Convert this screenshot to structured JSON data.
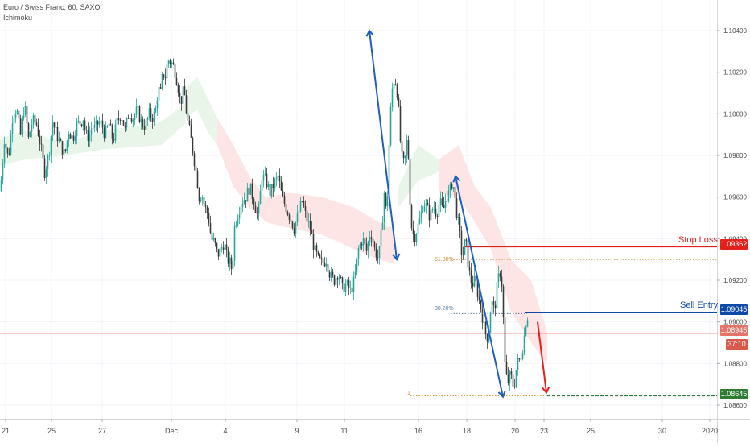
{
  "header": {
    "title": "Euro / Swiss Franc, 60, SAXO",
    "indicator": "Ichimoku"
  },
  "colors": {
    "up": "#26a69a",
    "down": "#3a3a3a",
    "stop": "#e2211c",
    "entry": "#0c4aa6",
    "target": "#2e7d32",
    "current": "#e57368",
    "timer": "#d9594c",
    "fib": "#d4892a",
    "grid": "#f0f3fa",
    "axis_text": "#4a4a4a",
    "cloud_bull": "#e6f3e6",
    "cloud_bear": "#fde1e1",
    "arrow_blue": "#1f5fbf",
    "arrow_red": "#e2211c"
  },
  "trade": {
    "stop_loss_label": "Stop Loss",
    "stop_loss_price": "1.09362",
    "sell_entry_label": "Sell Entry",
    "sell_entry_price": "1.09045",
    "target_price": "1.08645",
    "current_price": "1.08945",
    "countdown": "37:10"
  },
  "fib_labels": [
    "61.80%",
    "38.20%",
    "1"
  ],
  "chart_data": {
    "type": "candlestick",
    "symbol": "Euro / Swiss Franc, 60, SAXO",
    "indicator": "Ichimoku",
    "ylim": [
      1.0855,
      1.1055
    ],
    "y_ticks": [
      "1.10400",
      "1.10200",
      "1.10000",
      "1.09800",
      "1.09600",
      "1.09400",
      "1.09200",
      "1.09000",
      "1.08800",
      "1.08600"
    ],
    "x_ticks": [
      "21",
      "25",
      "27",
      "Dec",
      "4",
      "9",
      "11",
      "16",
      "18",
      "20",
      "23",
      "25",
      "30",
      "2020"
    ],
    "grid": true,
    "levels": {
      "stop_loss": 1.09362,
      "fib_61_8": 1.093,
      "sell_entry": 1.09045,
      "fib_38_2": 1.0904,
      "current": 1.08945,
      "target": 1.08645
    },
    "price_path": [
      [
        0,
        1.0963
      ],
      [
        5,
        1.0988
      ],
      [
        10,
        1.0978
      ],
      [
        15,
        1.0998
      ],
      [
        20,
        1.1003
      ],
      [
        25,
        1.099
      ],
      [
        30,
        1.1005
      ],
      [
        35,
        1.0988
      ],
      [
        40,
        1.0997
      ],
      [
        45,
        1.0995
      ],
      [
        50,
        1.0985
      ],
      [
        55,
        1.0972
      ],
      [
        60,
        1.098
      ],
      [
        65,
        1.0996
      ],
      [
        70,
        1.099
      ],
      [
        75,
        1.0985
      ],
      [
        80,
        1.098
      ],
      [
        85,
        1.0992
      ],
      [
        90,
        1.0988
      ],
      [
        95,
        1.0995
      ],
      [
        100,
        1.0996
      ],
      [
        103,
        1.0998
      ],
      [
        106,
        1.099
      ],
      [
        110,
        1.0989
      ],
      [
        114,
        1.0994
      ],
      [
        118,
        1.0993
      ],
      [
        122,
        1.0996
      ],
      [
        126,
        1.0995
      ],
      [
        130,
        1.099
      ],
      [
        135,
        1.0995
      ],
      [
        140,
        1.0987
      ],
      [
        145,
        1.0996
      ],
      [
        150,
        1.1
      ],
      [
        155,
        1.0992
      ],
      [
        160,
        1.1001
      ],
      [
        165,
        1.0998
      ],
      [
        170,
        1.1002
      ],
      [
        175,
        1.0996
      ],
      [
        180,
        1.0994
      ],
      [
        185,
        1.1
      ],
      [
        190,
        1.0998
      ],
      [
        193,
        1.1002
      ],
      [
        196,
        1.1012
      ],
      [
        199,
        1.101
      ],
      [
        202,
        1.102
      ],
      [
        205,
        1.1018
      ],
      [
        208,
        1.1026
      ],
      [
        212,
        1.1025
      ],
      [
        216,
        1.1022
      ],
      [
        220,
        1.1015
      ],
      [
        224,
        1.1005
      ],
      [
        228,
        1.1012
      ],
      [
        232,
        1.0998
      ],
      [
        236,
        1.099
      ],
      [
        240,
        1.098
      ],
      [
        244,
        1.097
      ],
      [
        247,
        1.096
      ],
      [
        250,
        1.0962
      ],
      [
        254,
        1.0955
      ],
      [
        258,
        1.0952
      ],
      [
        262,
        1.094
      ],
      [
        266,
        1.0938
      ],
      [
        270,
        1.0932
      ],
      [
        274,
        1.0935
      ],
      [
        278,
        1.0938
      ],
      [
        282,
        1.093
      ],
      [
        286,
        1.0928
      ],
      [
        288,
        1.0924
      ],
      [
        291,
        1.0946
      ],
      [
        295,
        1.0952
      ],
      [
        300,
        1.0958
      ],
      [
        305,
        1.096
      ],
      [
        310,
        1.0965
      ],
      [
        315,
        1.0958
      ],
      [
        320,
        1.095
      ],
      [
        325,
        1.097
      ],
      [
        330,
        1.0968
      ],
      [
        335,
        1.0962
      ],
      [
        340,
        1.0966
      ],
      [
        345,
        1.097
      ],
      [
        350,
        1.096
      ],
      [
        355,
        1.0955
      ],
      [
        360,
        1.095
      ],
      [
        365,
        1.0945
      ],
      [
        370,
        1.0952
      ],
      [
        375,
        1.0958
      ],
      [
        380,
        1.095
      ],
      [
        385,
        1.0945
      ],
      [
        390,
        1.0935
      ],
      [
        395,
        1.093
      ],
      [
        400,
        1.0928
      ],
      [
        405,
        1.093
      ],
      [
        410,
        1.0922
      ],
      [
        415,
        1.092
      ],
      [
        420,
        1.0924
      ],
      [
        425,
        1.0916
      ],
      [
        430,
        1.0918
      ],
      [
        435,
        1.0915
      ],
      [
        440,
        1.092
      ],
      [
        445,
        1.0935
      ],
      [
        450,
        1.094
      ],
      [
        455,
        1.0934
      ],
      [
        460,
        1.0944
      ],
      [
        465,
        1.0935
      ],
      [
        470,
        1.093
      ],
      [
        474,
        1.0945
      ],
      [
        477,
        1.0962
      ],
      [
        480,
        1.095
      ],
      [
        483,
        1.0985
      ],
      [
        486,
        1.101
      ],
      [
        490,
        1.1018
      ],
      [
        494,
        1.1008
      ],
      [
        498,
        1.098
      ],
      [
        502,
        1.0975
      ],
      [
        506,
        1.099
      ],
      [
        510,
        1.0948
      ],
      [
        514,
        1.094
      ],
      [
        518,
        1.0945
      ],
      [
        522,
        1.095
      ],
      [
        526,
        1.0958
      ],
      [
        530,
        1.0955
      ],
      [
        534,
        1.095
      ],
      [
        538,
        1.0956
      ],
      [
        542,
        1.0952
      ],
      [
        546,
        1.0958
      ],
      [
        550,
        1.0953
      ],
      [
        554,
        1.096
      ],
      [
        558,
        1.0962
      ],
      [
        562,
        1.0968
      ],
      [
        566,
        1.0955
      ],
      [
        570,
        1.0945
      ],
      [
        574,
        1.093
      ],
      [
        578,
        1.094
      ],
      [
        582,
        1.0925
      ],
      [
        586,
        1.0918
      ],
      [
        590,
        1.092
      ],
      [
        594,
        1.0912
      ],
      [
        598,
        1.0905
      ],
      [
        602,
        1.0895
      ],
      [
        606,
        1.0892
      ],
      [
        610,
        1.091
      ],
      [
        614,
        1.0905
      ],
      [
        618,
        1.092
      ],
      [
        622,
        1.0925
      ],
      [
        624,
        1.0912
      ],
      [
        627,
        1.088
      ],
      [
        630,
        1.087
      ],
      [
        634,
        1.0875
      ],
      [
        638,
        1.0868
      ],
      [
        642,
        1.088
      ],
      [
        646,
        1.0882
      ],
      [
        650,
        1.089
      ],
      [
        653,
        1.09
      ],
      [
        656,
        1.0904
      ]
    ],
    "cloud_segments": [
      {
        "kind": "bull",
        "x": [
          0,
          30,
          80,
          130,
          200,
          230
        ],
        "top": [
          1.0988,
          1.0992,
          1.0986,
          1.0992,
          1.0996,
          1.1005
        ],
        "bottom": [
          1.0975,
          1.0978,
          1.098,
          1.0983,
          1.0985,
          1.0995
        ]
      },
      {
        "kind": "bull",
        "x": [
          230,
          245,
          260,
          270
        ],
        "top": [
          1.1012,
          1.1018,
          1.1006,
          1.0998
        ],
        "bottom": [
          1.0998,
          1.1002,
          1.099,
          1.0985
        ]
      },
      {
        "kind": "bear",
        "x": [
          270,
          290,
          310,
          330,
          360,
          400,
          440,
          470,
          490
        ],
        "top": [
          1.0998,
          1.0985,
          1.097,
          1.096,
          1.0962,
          1.096,
          1.0955,
          1.0948,
          1.0945
        ],
        "bottom": [
          1.0985,
          1.0965,
          1.0955,
          1.0948,
          1.0945,
          1.0942,
          1.0935,
          1.093,
          1.0928
        ]
      },
      {
        "kind": "bull",
        "x": [
          495,
          520,
          545
        ],
        "top": [
          1.0965,
          1.0985,
          1.0978
        ],
        "bottom": [
          1.0955,
          1.0968,
          1.0972
        ]
      },
      {
        "kind": "bear",
        "x": [
          545,
          570,
          590,
          610,
          635,
          660,
          680
        ],
        "top": [
          1.0978,
          1.0985,
          1.0965,
          1.0955,
          1.093,
          1.092,
          1.0895
        ],
        "bottom": [
          1.0962,
          1.096,
          1.0948,
          1.0935,
          1.0905,
          1.089,
          1.088
        ]
      }
    ],
    "arrows": [
      {
        "color": "blue",
        "from": [
          459,
          1.104
        ],
        "to": [
          493,
          1.093
        ],
        "heads": [
          "start",
          "end"
        ]
      },
      {
        "color": "blue",
        "from": [
          566,
          1.097
        ],
        "to": [
          625,
          1.0864
        ],
        "heads": [
          "start",
          "end"
        ]
      },
      {
        "color": "red",
        "from": [
          668,
          1.09
        ],
        "to": [
          679,
          1.0866
        ],
        "heads": [
          "end"
        ]
      }
    ]
  }
}
